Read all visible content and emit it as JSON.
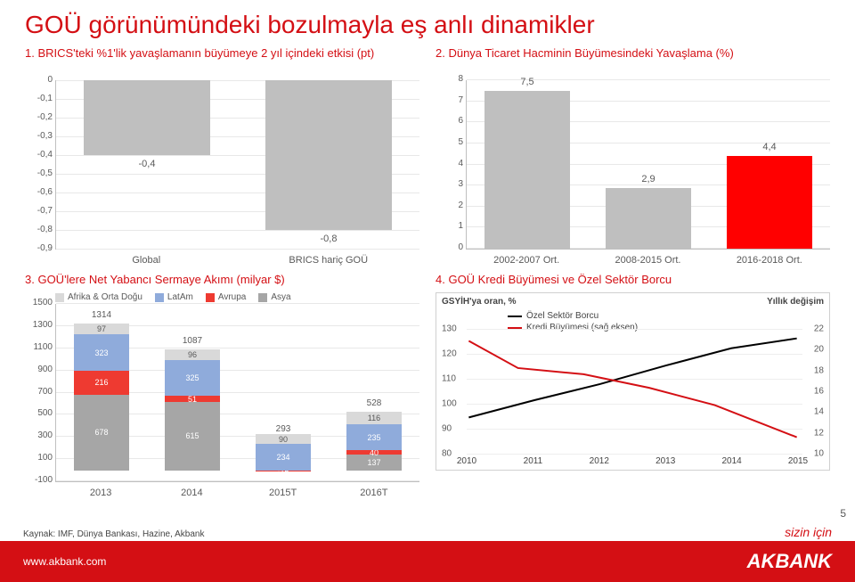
{
  "title": "GOÜ görünümündeki bozulmayla eş anlı dinamikler",
  "chart1": {
    "subtitle": "1. BRICS'teki %1'lik yavaşlamanın büyümeye 2 yıl içindeki etkisi (pt)",
    "type": "bar",
    "categories": [
      "Global",
      "BRICS hariç GOÜ"
    ],
    "values": [
      -0.4,
      -0.8
    ],
    "value_labels": [
      "-0,4",
      "-0,8"
    ],
    "bar_color": "#bfbfbf",
    "ytick_labels": [
      "0",
      "-0,1",
      "-0,2",
      "-0,3",
      "-0,4",
      "-0,5",
      "-0,6",
      "-0,7",
      "-0,8",
      "-0,9"
    ],
    "ymin": -0.9,
    "ymax": 0
  },
  "chart2": {
    "subtitle": "2. Dünya Ticaret Hacminin Büyümesindeki Yavaşlama (%)",
    "type": "bar",
    "categories": [
      "2002-2007 Ort.",
      "2008-2015 Ort.",
      "2016-2018 Ort."
    ],
    "values": [
      7.5,
      2.9,
      4.4
    ],
    "value_labels": [
      "7,5",
      "2,9",
      "4,4"
    ],
    "bar_colors": [
      "#bfbfbf",
      "#bfbfbf",
      "#ff0000"
    ],
    "ytick_labels": [
      "0",
      "1",
      "2",
      "3",
      "4",
      "5",
      "6",
      "7",
      "8"
    ],
    "ymin": 0,
    "ymax": 8
  },
  "chart3": {
    "subtitle": "3. GOÜ'lere Net Yabancı Sermaye  Akımı (milyar $)",
    "type": "stacked-bar",
    "categories": [
      "2013",
      "2014",
      "2015T",
      "2016T"
    ],
    "legend": [
      "Afrika & Orta Doğu",
      "LatAm",
      "Avrupa",
      "Asya"
    ],
    "colors": [
      "#d9d9d9",
      "#8fabdb",
      "#ee3a31",
      "#a6a6a6"
    ],
    "ytick_labels": [
      "-100",
      "100",
      "300",
      "500",
      "700",
      "900",
      "1100",
      "1300",
      "1500"
    ],
    "ymin": -100,
    "ymax": 1500,
    "totals": [
      "1314",
      "1087",
      "293",
      "528"
    ],
    "segments": [
      {
        "afr": 97,
        "lat": 323,
        "eur": 216,
        "asy": 678
      },
      {
        "afr": 96,
        "lat": 325,
        "eur": 51,
        "asy": 615
      },
      {
        "afr": 90,
        "lat": 234,
        "eur": -15,
        "asy": -15,
        "show": [
          "90",
          "234",
          "-15"
        ]
      },
      {
        "afr": 116,
        "lat": 235,
        "eur": 40,
        "asy": 137
      }
    ],
    "seg_labels": [
      [
        "97",
        "323",
        "216",
        "678"
      ],
      [
        "96",
        "325",
        "51",
        "615"
      ],
      [
        "90",
        "234",
        "-15",
        ""
      ],
      [
        "116",
        "235",
        "40",
        "137"
      ]
    ]
  },
  "chart4": {
    "subtitle": "4. GOÜ Kredi Büyümesi ve Özel Sektör Borcu",
    "type": "line",
    "left_axis_title": "GSYİH'ya oran, %",
    "right_axis_title": "Yıllık değişim",
    "legend": [
      "Özel Sektör Borcu",
      "Kredi Büyümesi (sağ eksen)"
    ],
    "legend_colors": [
      "#000000",
      "#d40f14"
    ],
    "left_ticks": [
      "80",
      "90",
      "100",
      "110",
      "120",
      "130"
    ],
    "right_ticks": [
      "10",
      "12",
      "14",
      "16",
      "18",
      "20",
      "22"
    ],
    "x_ticks": [
      "2010",
      "2011",
      "2012",
      "2013",
      "2014",
      "2015"
    ],
    "line_black": [
      [
        0,
        0.28
      ],
      [
        0.2,
        0.42
      ],
      [
        0.4,
        0.55
      ],
      [
        0.6,
        0.7
      ],
      [
        0.8,
        0.84
      ],
      [
        1,
        0.92
      ]
    ],
    "line_red": [
      [
        0,
        0.9
      ],
      [
        0.15,
        0.68
      ],
      [
        0.35,
        0.63
      ],
      [
        0.55,
        0.52
      ],
      [
        0.75,
        0.38
      ],
      [
        1,
        0.12
      ]
    ]
  },
  "footer": {
    "url": "www.akbank.com",
    "logo": "AKBANK",
    "tagline": "sizin için",
    "source": "Kaynak: IMF, Dünya Bankası, Hazine, Akbank",
    "page": "5"
  }
}
